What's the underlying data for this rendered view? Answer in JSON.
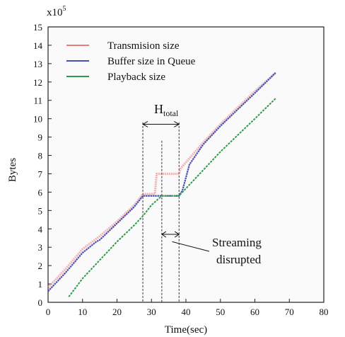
{
  "chart_data": {
    "type": "line",
    "title": "",
    "xlabel": "Time(sec)",
    "ylabel": "Bytes",
    "y_multiplier_label": "x10",
    "y_multiplier_exp": "5",
    "xlim": [
      0,
      80
    ],
    "ylim": [
      0,
      15
    ],
    "xticks": [
      "0",
      "10",
      "20",
      "30",
      "40",
      "50",
      "60",
      "70",
      "80"
    ],
    "yticks": [
      "0",
      "1",
      "2",
      "3",
      "4",
      "5",
      "6",
      "7",
      "8",
      "9",
      "10",
      "11",
      "12",
      "13",
      "14",
      "15"
    ],
    "legend_position": "top-left",
    "series": [
      {
        "name": "Transmision size",
        "color": "#e87a7a",
        "points": [
          [
            0,
            0.8
          ],
          [
            5,
            1.8
          ],
          [
            10,
            2.9
          ],
          [
            15,
            3.6
          ],
          [
            20,
            4.4
          ],
          [
            25,
            5.3
          ],
          [
            27.5,
            5.9
          ],
          [
            31,
            5.9
          ],
          [
            31.5,
            7.0
          ],
          [
            38,
            7.0
          ],
          [
            38.5,
            7.3
          ],
          [
            45,
            8.7
          ],
          [
            50,
            9.7
          ],
          [
            55,
            10.6
          ],
          [
            60,
            11.5
          ],
          [
            66,
            12.5
          ]
        ]
      },
      {
        "name": "Buffer size in Queue",
        "color": "#4a4fb0",
        "points": [
          [
            0,
            0.6
          ],
          [
            5,
            1.6
          ],
          [
            10,
            2.7
          ],
          [
            14,
            3.3
          ],
          [
            15,
            3.4
          ],
          [
            20,
            4.3
          ],
          [
            25,
            5.2
          ],
          [
            27.5,
            5.8
          ],
          [
            30,
            5.8
          ],
          [
            38,
            5.8
          ],
          [
            39,
            6.1
          ],
          [
            41,
            7.5
          ],
          [
            45,
            8.6
          ],
          [
            50,
            9.6
          ],
          [
            55,
            10.5
          ],
          [
            60,
            11.4
          ],
          [
            66,
            12.5
          ]
        ]
      },
      {
        "name": "Playback size",
        "color": "#2e9a4a",
        "points": [
          [
            6,
            0.3
          ],
          [
            10,
            1.3
          ],
          [
            15,
            2.3
          ],
          [
            20,
            3.3
          ],
          [
            25,
            4.2
          ],
          [
            27.5,
            4.7
          ],
          [
            30,
            5.3
          ],
          [
            33,
            5.8
          ],
          [
            38,
            5.8
          ],
          [
            40,
            6.2
          ],
          [
            45,
            7.2
          ],
          [
            50,
            8.2
          ],
          [
            55,
            9.1
          ],
          [
            60,
            10.0
          ],
          [
            66,
            11.1
          ]
        ]
      }
    ],
    "annotations": {
      "htotal_base": "H",
      "htotal_sub": "total",
      "disrupt_line1": "Streaming",
      "disrupt_line2": "disrupted"
    }
  }
}
